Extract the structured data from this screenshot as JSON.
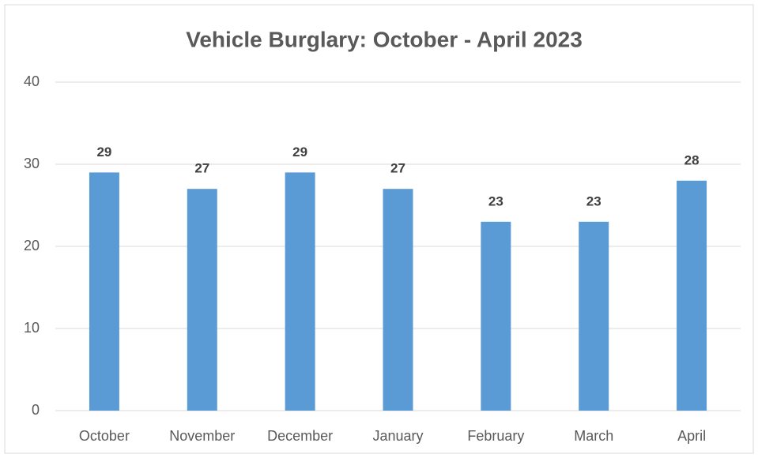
{
  "chart_data": {
    "type": "bar",
    "title": "Vehicle Burglary: October - April 2023",
    "categories": [
      "October",
      "November",
      "December",
      "January",
      "February",
      "March",
      "April"
    ],
    "values": [
      29,
      27,
      29,
      27,
      23,
      23,
      28
    ],
    "color": "#5b9bd5",
    "ylim": [
      0,
      40
    ],
    "yticks": [
      0,
      10,
      20,
      30,
      40
    ],
    "grid": true,
    "data_labels": true
  }
}
